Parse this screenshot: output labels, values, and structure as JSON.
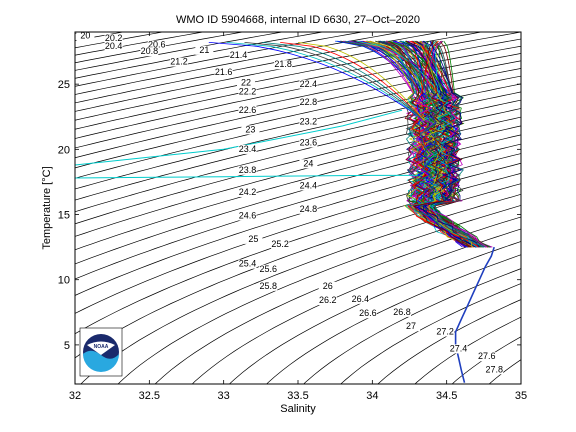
{
  "chart_data": {
    "type": "line",
    "title": "WMO ID 5904668, internal ID 6630, 27–Oct–2020",
    "xlabel": "Salinity",
    "ylabel": "Temperature [°C]",
    "xlim": [
      32,
      35
    ],
    "ylim": [
      2,
      29
    ],
    "x_ticks": [
      "32",
      "32.5",
      "33",
      "33.5",
      "34",
      "34.5",
      "35"
    ],
    "y_ticks": [
      "5",
      "10",
      "15",
      "20",
      "25"
    ],
    "x_tick_values": [
      32,
      32.5,
      33,
      33.5,
      34,
      34.5,
      35
    ],
    "y_tick_values": [
      5,
      10,
      15,
      20,
      25
    ],
    "density_contours": {
      "sigma_values": [
        19.6,
        20,
        20.4,
        20.8,
        21.2,
        21.6,
        22,
        22.4,
        22.8,
        23.2,
        23.6,
        24,
        24.4,
        24.8,
        25.2,
        25.6,
        26,
        26.4,
        26.8,
        27.2,
        27.6,
        28
      ],
      "labels": [
        {
          "text": "20",
          "s": 32.07,
          "t": 28.5
        },
        {
          "text": "20.2",
          "s": 32.26,
          "t": 28.3
        },
        {
          "text": "20.4",
          "s": 32.26,
          "t": 27.7
        },
        {
          "text": "20.6",
          "s": 32.55,
          "t": 27.8
        },
        {
          "text": "20.8",
          "s": 32.5,
          "t": 27.3
        },
        {
          "text": "21",
          "s": 32.87,
          "t": 27.4
        },
        {
          "text": "21.2",
          "s": 32.7,
          "t": 26.5
        },
        {
          "text": "21.4",
          "s": 33.1,
          "t": 27.0
        },
        {
          "text": "21.6",
          "s": 33.0,
          "t": 25.7
        },
        {
          "text": "21.8",
          "s": 33.4,
          "t": 26.3
        },
        {
          "text": "22",
          "s": 33.15,
          "t": 24.9
        },
        {
          "text": "22.2",
          "s": 33.16,
          "t": 24.2
        },
        {
          "text": "22.4",
          "s": 33.57,
          "t": 24.8
        },
        {
          "text": "22.6",
          "s": 33.16,
          "t": 22.8
        },
        {
          "text": "22.8",
          "s": 33.57,
          "t": 23.4
        },
        {
          "text": "23",
          "s": 33.18,
          "t": 21.3
        },
        {
          "text": "23.2",
          "s": 33.57,
          "t": 21.9
        },
        {
          "text": "23.4",
          "s": 33.16,
          "t": 19.8
        },
        {
          "text": "23.6",
          "s": 33.57,
          "t": 20.3
        },
        {
          "text": "23.8",
          "s": 33.16,
          "t": 18.2
        },
        {
          "text": "24",
          "s": 33.57,
          "t": 18.7
        },
        {
          "text": "24.2",
          "s": 33.16,
          "t": 16.5
        },
        {
          "text": "24.4",
          "s": 33.57,
          "t": 17.0
        },
        {
          "text": "24.6",
          "s": 33.16,
          "t": 14.7
        },
        {
          "text": "24.8",
          "s": 33.57,
          "t": 15.2
        },
        {
          "text": "25",
          "s": 33.2,
          "t": 12.9
        },
        {
          "text": "25.2",
          "s": 33.38,
          "t": 12.5
        },
        {
          "text": "25.4",
          "s": 33.16,
          "t": 11.0
        },
        {
          "text": "25.6",
          "s": 33.3,
          "t": 10.6
        },
        {
          "text": "25.8",
          "s": 33.3,
          "t": 9.3
        },
        {
          "text": "26",
          "s": 33.7,
          "t": 9.3
        },
        {
          "text": "26.2",
          "s": 33.7,
          "t": 8.2
        },
        {
          "text": "26.4",
          "s": 33.92,
          "t": 8.3
        },
        {
          "text": "26.6",
          "s": 33.97,
          "t": 7.2
        },
        {
          "text": "26.8",
          "s": 34.2,
          "t": 7.3
        },
        {
          "text": "27",
          "s": 34.26,
          "t": 6.2
        },
        {
          "text": "27.2",
          "s": 34.49,
          "t": 5.8
        },
        {
          "text": "27.4",
          "s": 34.58,
          "t": 4.5
        },
        {
          "text": "27.6",
          "s": 34.77,
          "t": 3.9
        },
        {
          "text": "27.8",
          "s": 34.82,
          "t": 2.9
        }
      ]
    },
    "profiles": {
      "colors": [
        "#0000ff",
        "#008000",
        "#ff0000",
        "#00bfbf",
        "#bf00bf",
        "#bfbf00",
        "#404040",
        "#000080",
        "#800000",
        "#008080"
      ],
      "deep_trace": {
        "color": "#1f3fbf",
        "points": [
          [
            34.62,
            2.1
          ],
          [
            34.6,
            3.0
          ],
          [
            34.58,
            4.0
          ],
          [
            34.56,
            5.0
          ],
          [
            34.56,
            6.0
          ],
          [
            34.6,
            7.0
          ],
          [
            34.64,
            8.0
          ],
          [
            34.68,
            9.0
          ],
          [
            34.72,
            10.0
          ],
          [
            34.76,
            11.0
          ],
          [
            34.8,
            11.8
          ],
          [
            34.82,
            12.5
          ]
        ]
      },
      "cyan_lines": [
        {
          "color": "#00cccc",
          "points": [
            [
              32.0,
              17.8
            ],
            [
              33.0,
              17.9
            ],
            [
              34.0,
              18.0
            ],
            [
              34.3,
              18.0
            ]
          ]
        },
        {
          "color": "#00cccc",
          "points": [
            [
              32.0,
              18.8
            ],
            [
              33.0,
              20.0
            ],
            [
              33.8,
              21.8
            ],
            [
              34.2,
              23.0
            ]
          ]
        }
      ]
    }
  },
  "logo": {
    "text": "NOAA",
    "colors": {
      "dark": "#1a2a6c",
      "light": "#29a8e0",
      "white": "#ffffff"
    }
  }
}
